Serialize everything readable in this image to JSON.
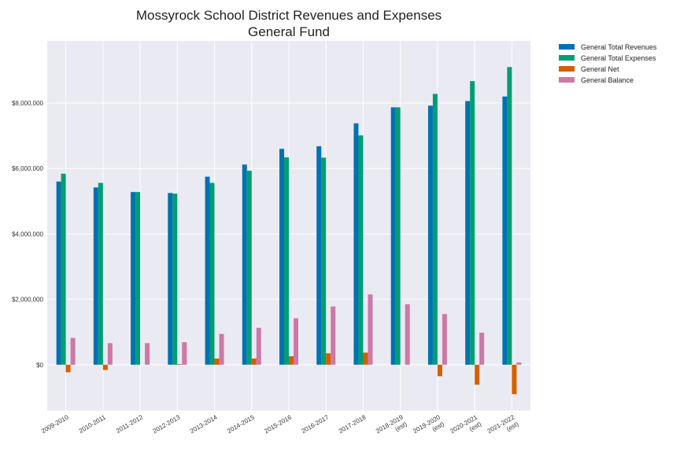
{
  "chart_data": {
    "type": "bar",
    "title": "Mossyrock School District Revenues and Expenses",
    "subtitle": "General Fund",
    "xlabel": "",
    "ylabel": "",
    "ylim": [
      -1400000,
      9900000
    ],
    "yticks": [
      0,
      2000000,
      4000000,
      6000000,
      8000000
    ],
    "ytick_labels": [
      "$0",
      "$2,000,000",
      "$4,000,000",
      "$6,000,000",
      "$8,000,000"
    ],
    "grid": true,
    "legend_position": "outside-top-right",
    "categories": [
      [
        "2009-2010"
      ],
      [
        "2010-2011"
      ],
      [
        "2011-2012"
      ],
      [
        "2012-2013"
      ],
      [
        "2013-2014"
      ],
      [
        "2014-2015"
      ],
      [
        "2015-2016"
      ],
      [
        "2016-2017"
      ],
      [
        "2017-2018"
      ],
      [
        "2018-2019",
        "(est)"
      ],
      [
        "2019-2020",
        "(est)"
      ],
      [
        "2020-2021",
        "(est)"
      ],
      [
        "2021-2022",
        "(est)"
      ]
    ],
    "series": [
      {
        "name": "General Total Revenues",
        "color": "#0072b2",
        "values": [
          5600000,
          5420000,
          5280000,
          5250000,
          5750000,
          6120000,
          6600000,
          6680000,
          7380000,
          7870000,
          7920000,
          8060000,
          8200000
        ]
      },
      {
        "name": "General Total Expenses",
        "color": "#009e73",
        "values": [
          5840000,
          5560000,
          5280000,
          5230000,
          5560000,
          5930000,
          6340000,
          6330000,
          7010000,
          7870000,
          8280000,
          8670000,
          9100000
        ]
      },
      {
        "name": "General Net",
        "color": "#d55e00",
        "values": [
          -230000,
          -160000,
          0,
          20000,
          190000,
          190000,
          260000,
          350000,
          370000,
          0,
          -350000,
          -610000,
          -900000
        ]
      },
      {
        "name": "General Balance",
        "color": "#cc79a7",
        "values": [
          820000,
          660000,
          660000,
          690000,
          940000,
          1130000,
          1420000,
          1780000,
          2150000,
          1850000,
          1550000,
          980000,
          70000
        ]
      }
    ]
  }
}
